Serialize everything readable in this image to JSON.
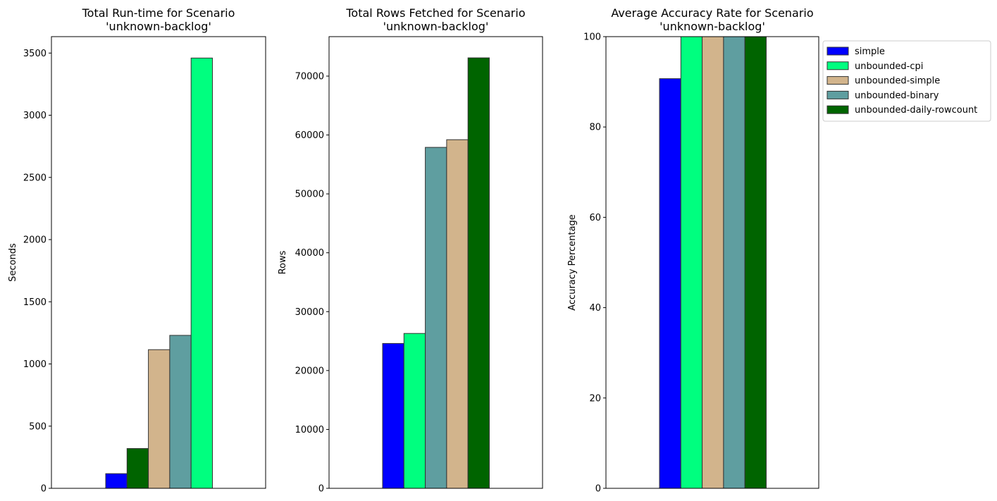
{
  "chart_data": [
    {
      "type": "bar",
      "title": "Total Run-time for Scenario\n'unknown-backlog'",
      "xlabel": "",
      "ylabel": "Seconds",
      "ylim": [
        0,
        3632
      ],
      "yticks": [
        "0",
        "500",
        "1000",
        "1500",
        "2000",
        "2500",
        "3000",
        "3500"
      ],
      "series": [
        {
          "name": "simple",
          "values": [
            118
          ]
        },
        {
          "name": "unbounded-daily-rowcount",
          "values": [
            320
          ]
        },
        {
          "name": "unbounded-simple",
          "values": [
            1115
          ]
        },
        {
          "name": "unbounded-binary",
          "values": [
            1230
          ]
        },
        {
          "name": "unbounded-cpi",
          "values": [
            3460
          ]
        }
      ]
    },
    {
      "type": "bar",
      "title": "Total Rows Fetched for Scenario\n'unknown-backlog'",
      "xlabel": "",
      "ylabel": "Rows",
      "ylim": [
        0,
        76700
      ],
      "yticks": [
        "0",
        "10000",
        "20000",
        "30000",
        "40000",
        "50000",
        "60000",
        "70000"
      ],
      "series": [
        {
          "name": "simple",
          "values": [
            24600
          ]
        },
        {
          "name": "unbounded-cpi",
          "values": [
            26300
          ]
        },
        {
          "name": "unbounded-binary",
          "values": [
            57900
          ]
        },
        {
          "name": "unbounded-simple",
          "values": [
            59200
          ]
        },
        {
          "name": "unbounded-daily-rowcount",
          "values": [
            73100
          ]
        }
      ]
    },
    {
      "type": "bar",
      "title": "Average Accuracy Rate for Scenario\n'unknown-backlog'",
      "xlabel": "",
      "ylabel": "Accuracy Percentage",
      "ylim": [
        0,
        100
      ],
      "yticks": [
        "0",
        "20",
        "40",
        "60",
        "80",
        "100"
      ],
      "legend_position": "outside-top-right",
      "series": [
        {
          "name": "simple",
          "values": [
            90.7
          ]
        },
        {
          "name": "unbounded-cpi",
          "values": [
            100
          ]
        },
        {
          "name": "unbounded-simple",
          "values": [
            100
          ]
        },
        {
          "name": "unbounded-binary",
          "values": [
            100
          ]
        },
        {
          "name": "unbounded-daily-rowcount",
          "values": [
            100
          ]
        }
      ]
    }
  ],
  "colors": {
    "simple": "#0000ff",
    "unbounded-cpi": "#00ff7f",
    "unbounded-simple": "#d2b48c",
    "unbounded-binary": "#5f9ea0",
    "unbounded-daily-rowcount": "#006400"
  },
  "legend": {
    "entries": [
      "simple",
      "unbounded-cpi",
      "unbounded-simple",
      "unbounded-binary",
      "unbounded-daily-rowcount"
    ]
  }
}
